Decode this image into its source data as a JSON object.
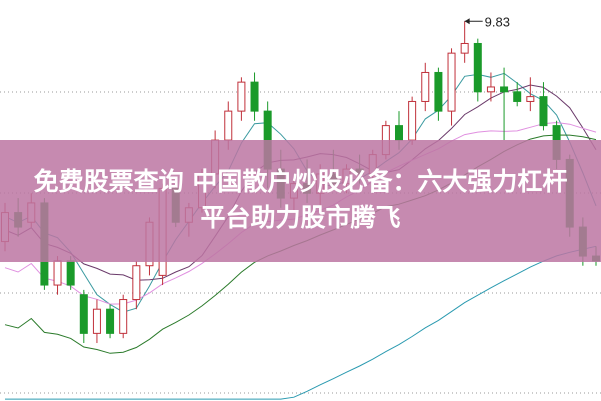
{
  "banner": {
    "line1": "免费股票查询 中国散户炒股必备：六大强力杠杆",
    "line2": "平台助力股市腾飞"
  },
  "chart_data": {
    "type": "candlestick",
    "title": "",
    "peak_label": "9.83",
    "ylim": [
      5.9,
      10.05
    ],
    "grid": "horizontal-dotted",
    "colors": {
      "up": "#c0303a",
      "down": "#1a9a2a",
      "ma5": "#3a9aa0",
      "ma10": "#6a3a6a",
      "ma20": "#e090e0",
      "ma30": "#2a7a2a",
      "ma60": "#2a9ab0",
      "banner": "#bc76a2"
    },
    "ma_periods": [
      5,
      10,
      20,
      30,
      60
    ],
    "candles": [
      [
        7.55,
        7.95,
        7.45,
        7.85
      ],
      [
        7.85,
        8.0,
        7.6,
        7.7
      ],
      [
        7.75,
        8.05,
        7.7,
        7.95
      ],
      [
        7.95,
        8.0,
        7.05,
        7.1
      ],
      [
        7.1,
        7.4,
        7.0,
        7.35
      ],
      [
        7.35,
        7.4,
        7.05,
        7.1
      ],
      [
        7.0,
        7.05,
        6.5,
        6.6
      ],
      [
        6.6,
        6.95,
        6.5,
        6.85
      ],
      [
        6.85,
        6.9,
        6.55,
        6.6
      ],
      [
        6.6,
        7.0,
        6.55,
        6.95
      ],
      [
        6.95,
        7.35,
        6.85,
        7.3
      ],
      [
        7.3,
        7.8,
        7.2,
        7.75
      ],
      [
        7.2,
        8.15,
        7.1,
        8.1
      ],
      [
        8.1,
        8.2,
        7.7,
        7.75
      ],
      [
        7.75,
        7.95,
        7.6,
        7.9
      ],
      [
        7.9,
        8.3,
        7.85,
        8.25
      ],
      [
        8.25,
        8.7,
        8.1,
        8.6
      ],
      [
        8.6,
        9.0,
        8.5,
        8.9
      ],
      [
        8.9,
        9.25,
        8.8,
        9.2
      ],
      [
        9.2,
        9.3,
        8.8,
        8.9
      ],
      [
        8.9,
        9.0,
        8.1,
        8.3
      ],
      [
        8.3,
        8.5,
        7.9,
        8.0
      ],
      [
        8.0,
        8.2,
        7.85,
        8.15
      ],
      [
        8.15,
        8.4,
        7.95,
        8.05
      ],
      [
        8.05,
        8.35,
        7.9,
        8.25
      ],
      [
        8.25,
        8.5,
        8.1,
        8.15
      ],
      [
        8.15,
        8.35,
        8.05,
        8.3
      ],
      [
        8.3,
        8.45,
        8.15,
        8.25
      ],
      [
        8.25,
        8.5,
        8.2,
        8.45
      ],
      [
        8.45,
        8.8,
        8.4,
        8.75
      ],
      [
        8.75,
        8.9,
        8.5,
        8.6
      ],
      [
        8.6,
        9.05,
        8.55,
        9.0
      ],
      [
        9.0,
        9.4,
        8.9,
        9.3
      ],
      [
        9.3,
        9.35,
        8.8,
        8.9
      ],
      [
        8.9,
        9.55,
        8.75,
        9.5
      ],
      [
        9.5,
        9.83,
        9.4,
        9.6
      ],
      [
        9.6,
        9.65,
        9.0,
        9.1
      ],
      [
        9.1,
        9.3,
        9.0,
        9.15
      ],
      [
        9.15,
        9.35,
        8.6,
        9.1
      ],
      [
        9.1,
        9.2,
        8.95,
        9.0
      ],
      [
        9.0,
        9.25,
        8.9,
        9.05
      ],
      [
        9.05,
        9.2,
        8.7,
        8.75
      ],
      [
        8.75,
        8.8,
        8.3,
        8.4
      ],
      [
        8.4,
        8.45,
        7.6,
        7.7
      ],
      [
        7.7,
        7.8,
        7.3,
        7.4
      ],
      [
        7.4,
        7.5,
        7.3,
        7.35
      ]
    ]
  }
}
